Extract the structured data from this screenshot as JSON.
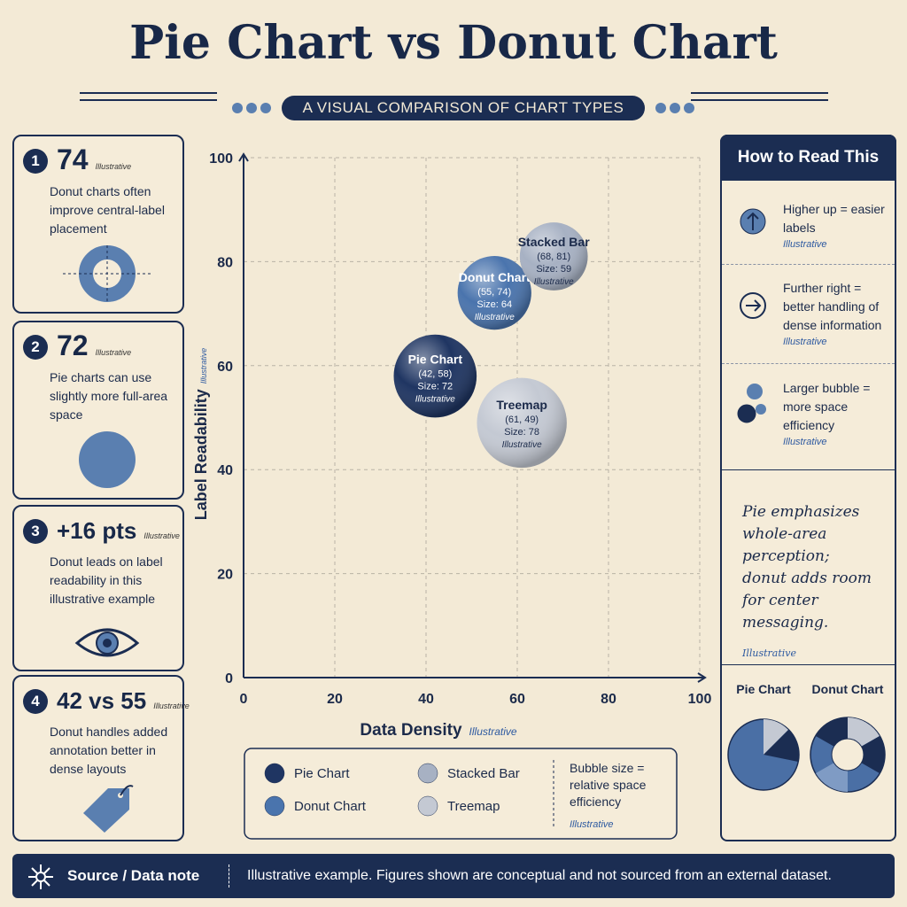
{
  "title": "Pie Chart vs Donut Chart",
  "subtitle": "A VISUAL COMPARISON OF CHART TYPES",
  "cards": [
    {
      "number": "1",
      "stat": "74",
      "tag": "Illustrative",
      "text": "Donut charts often improve central-label placement"
    },
    {
      "number": "2",
      "stat": "72",
      "tag": "Illustrative",
      "text": "Pie charts can use slightly more full-area space"
    },
    {
      "number": "3",
      "stat": "+16 pts",
      "tag": "Illustrative",
      "text": "Donut leads on label readability in this illustrative example"
    },
    {
      "number": "4",
      "stat": "42 vs 55",
      "tag": "Illustrative",
      "text": "Donut handles added annotation better in dense layouts"
    }
  ],
  "chart_data": {
    "type": "bubble",
    "x_label": "Data Density",
    "x_label_note": "Illustrative",
    "y_label": "Label Readability",
    "y_label_note": "Illustrative",
    "xlim": [
      0,
      100
    ],
    "ylim": [
      0,
      100
    ],
    "xticks": [
      0,
      20,
      40,
      60,
      80,
      100
    ],
    "yticks": [
      0,
      20,
      40,
      60,
      80,
      100
    ],
    "grid": true,
    "series": [
      {
        "name": "Pie Chart",
        "color": "#1f3562",
        "x": [
          42
        ],
        "values": [
          58
        ],
        "sizes": [
          72
        ],
        "point_labels": [
          "(42, 58)"
        ],
        "size_labels": [
          "Size: 72"
        ],
        "notes": [
          "Illustrative"
        ]
      },
      {
        "name": "Donut Chart",
        "color": "#4a74ad",
        "x": [
          55
        ],
        "values": [
          74
        ],
        "sizes": [
          64
        ],
        "point_labels": [
          "(55, 74)"
        ],
        "size_labels": [
          "Size: 64"
        ],
        "notes": [
          "Illustrative"
        ]
      },
      {
        "name": "Stacked Bar",
        "color": "#a7b1c3",
        "x": [
          68
        ],
        "values": [
          81
        ],
        "sizes": [
          59
        ],
        "point_labels": [
          "(68, 81)"
        ],
        "size_labels": [
          "Size: 59"
        ],
        "notes": [
          "Illustrative"
        ]
      },
      {
        "name": "Treemap",
        "color": "#c4c9d3",
        "x": [
          61
        ],
        "values": [
          49
        ],
        "sizes": [
          78
        ],
        "point_labels": [
          "(61, 49)"
        ],
        "size_labels": [
          "Size: 78"
        ],
        "notes": [
          "Illustrative"
        ]
      }
    ],
    "legend_note": "Bubble size = relative space efficiency",
    "legend_note_tag": "Illustrative"
  },
  "guide": {
    "title": "How to Read This",
    "items": [
      {
        "text": "Higher up = easier labels",
        "tag": "Illustrative"
      },
      {
        "text": "Further right = better handling of dense information",
        "tag": "Illustrative"
      },
      {
        "text": "Larger bubble = more space efficiency",
        "tag": "Illustrative"
      }
    ],
    "summary": "Pie emphasizes whole-area perception; donut adds room for center messaging.",
    "summary_tag": "Illustrative",
    "mini_labels": [
      "Pie Chart",
      "Donut Chart"
    ]
  },
  "footer": {
    "label": "Source / Data note",
    "text": "Illustrative example. Figures shown are conceptual and not sourced from an external dataset."
  }
}
